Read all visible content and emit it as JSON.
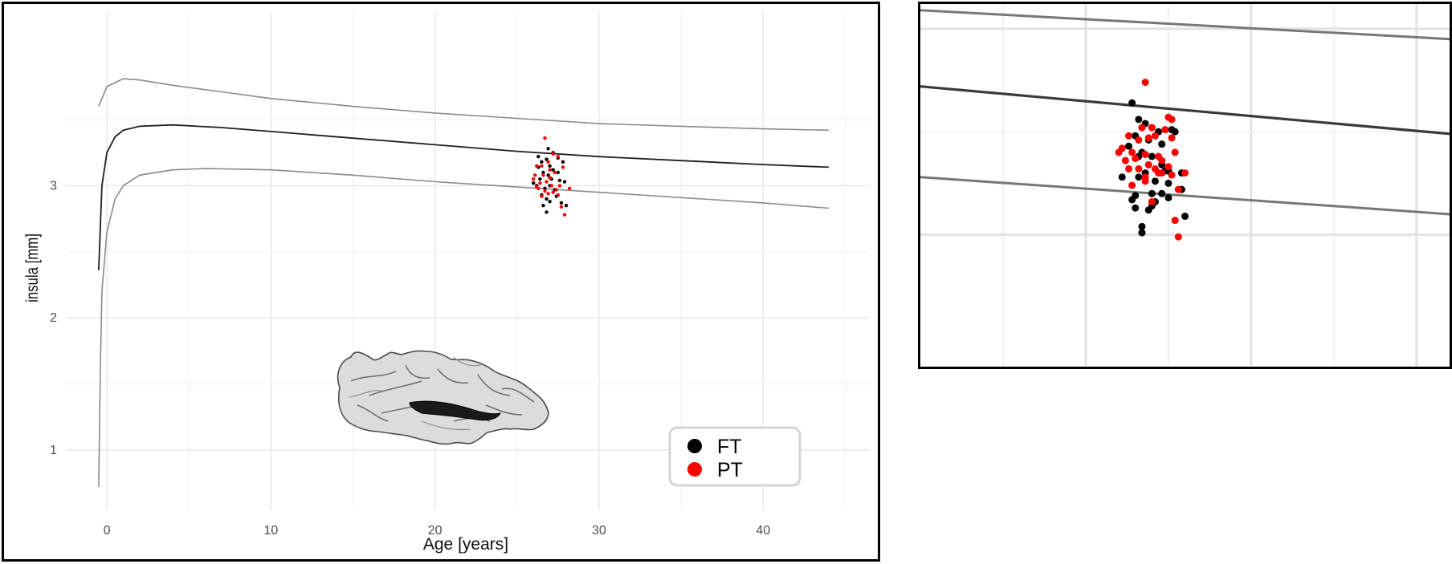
{
  "chart_data": [
    {
      "type": "scatter",
      "xlabel": "Age [years]",
      "ylabel": "insula [mm]",
      "xlim": [
        -2.5,
        46.5
      ],
      "ylim": [
        0.55,
        3.95
      ],
      "x_ticks": [
        "0",
        "10",
        "20",
        "30",
        "40"
      ],
      "x_tick_values": [
        0,
        10,
        20,
        30,
        40
      ],
      "y_ticks": [
        "1",
        "2",
        "3"
      ],
      "y_tick_values": [
        1,
        2,
        3
      ],
      "grid": true,
      "legend_position": "bottom-right",
      "legend": [
        {
          "label": "FT",
          "color": "#000000"
        },
        {
          "label": "PT",
          "color": "#ff0000"
        }
      ],
      "curves": [
        {
          "role": "upper",
          "color": "#8a8a8a",
          "points": [
            [
              -0.5,
              3.6
            ],
            [
              0,
              3.75
            ],
            [
              1,
              3.81
            ],
            [
              2,
              3.8
            ],
            [
              4,
              3.76
            ],
            [
              7,
              3.71
            ],
            [
              10,
              3.66
            ],
            [
              15,
              3.6
            ],
            [
              20,
              3.55
            ],
            [
              25,
              3.51
            ],
            [
              30,
              3.47
            ],
            [
              35,
              3.45
            ],
            [
              40,
              3.43
            ],
            [
              44,
              3.42
            ]
          ]
        },
        {
          "role": "median",
          "color": "#1e1e1e",
          "points": [
            [
              -0.5,
              2.36
            ],
            [
              -0.3,
              3.0
            ],
            [
              0,
              3.25
            ],
            [
              0.5,
              3.37
            ],
            [
              1,
              3.42
            ],
            [
              2,
              3.45
            ],
            [
              4,
              3.46
            ],
            [
              7,
              3.44
            ],
            [
              10,
              3.41
            ],
            [
              15,
              3.36
            ],
            [
              20,
              3.31
            ],
            [
              25,
              3.26
            ],
            [
              30,
              3.22
            ],
            [
              35,
              3.19
            ],
            [
              40,
              3.16
            ],
            [
              44,
              3.14
            ]
          ]
        },
        {
          "role": "lower",
          "color": "#8a8a8a",
          "points": [
            [
              -0.5,
              0.72
            ],
            [
              -0.4,
              1.6
            ],
            [
              -0.3,
              2.2
            ],
            [
              0,
              2.65
            ],
            [
              0.5,
              2.9
            ],
            [
              1,
              3.0
            ],
            [
              2,
              3.08
            ],
            [
              4,
              3.12
            ],
            [
              6,
              3.13
            ],
            [
              10,
              3.12
            ],
            [
              15,
              3.08
            ],
            [
              20,
              3.03
            ],
            [
              25,
              2.99
            ],
            [
              30,
              2.95
            ],
            [
              35,
              2.91
            ],
            [
              40,
              2.87
            ],
            [
              44,
              2.83
            ]
          ]
        }
      ],
      "series": [
        {
          "name": "FT",
          "color": "#000000",
          "points": [
            [
              26.3,
              3.22
            ],
            [
              26.5,
              3.18
            ],
            [
              26.8,
              3.2
            ],
            [
              27.0,
              3.15
            ],
            [
              27.2,
              3.12
            ],
            [
              26.9,
              3.08
            ],
            [
              26.6,
              3.1
            ],
            [
              27.5,
              3.21
            ],
            [
              27.8,
              3.18
            ],
            [
              26.4,
              3.05
            ],
            [
              26.2,
              3.0
            ],
            [
              26.7,
              2.98
            ],
            [
              27.1,
              3.05
            ],
            [
              27.3,
              2.97
            ],
            [
              27.6,
              3.04
            ],
            [
              27.9,
              3.03
            ],
            [
              26.5,
              2.93
            ],
            [
              26.8,
              2.9
            ],
            [
              27.0,
              2.88
            ],
            [
              27.4,
              2.92
            ],
            [
              27.7,
              2.87
            ],
            [
              26.6,
              2.85
            ],
            [
              26.8,
              2.8
            ],
            [
              28.0,
              2.85
            ],
            [
              26.0,
              3.02
            ],
            [
              27.2,
              3.25
            ],
            [
              26.9,
              3.28
            ],
            [
              27.5,
              3.1
            ],
            [
              26.3,
              3.14
            ],
            [
              27.0,
              3.0
            ]
          ]
        },
        {
          "name": "PT",
          "color": "#ff0000",
          "points": [
            [
              26.7,
              3.36
            ],
            [
              27.2,
              3.24
            ],
            [
              27.5,
              3.22
            ],
            [
              26.2,
              3.15
            ],
            [
              26.5,
              3.15
            ],
            [
              27.0,
              3.12
            ],
            [
              27.8,
              3.14
            ],
            [
              26.1,
              3.08
            ],
            [
              26.6,
              3.08
            ],
            [
              27.3,
              3.1
            ],
            [
              26.0,
              3.05
            ],
            [
              26.4,
              3.02
            ],
            [
              26.8,
              3.03
            ],
            [
              27.1,
              3.0
            ],
            [
              27.6,
              3.0
            ],
            [
              26.3,
              2.98
            ],
            [
              26.7,
              2.96
            ],
            [
              27.2,
              2.95
            ],
            [
              27.5,
              2.93
            ],
            [
              26.5,
              2.92
            ],
            [
              26.9,
              2.94
            ],
            [
              27.4,
              2.97
            ],
            [
              28.2,
              2.98
            ],
            [
              27.7,
              2.84
            ],
            [
              27.9,
              2.78
            ],
            [
              26.9,
              3.18
            ],
            [
              27.0,
              3.06
            ],
            [
              26.2,
              2.99
            ]
          ]
        }
      ]
    },
    {
      "type": "scatter",
      "xlim": [
        20,
        36
      ],
      "ylim": [
        2.68,
        3.56
      ],
      "grid": true,
      "curves": [
        {
          "role": "upper",
          "color": "#777777",
          "points": [
            [
              20,
              3.545
            ],
            [
              36,
              3.475
            ]
          ]
        },
        {
          "role": "median",
          "color": "#3a3a3a",
          "points": [
            [
              20,
              3.36
            ],
            [
              36,
              3.245
            ]
          ]
        },
        {
          "role": "lower",
          "color": "#777777",
          "points": [
            [
              20,
              3.14
            ],
            [
              36,
              3.05
            ]
          ]
        }
      ],
      "series": [
        {
          "name": "FT",
          "color": "#000000",
          "points": [
            [
              26.4,
              3.32
            ],
            [
              26.6,
              3.28
            ],
            [
              26.8,
              3.27
            ],
            [
              27.0,
              3.26
            ],
            [
              27.2,
              3.25
            ],
            [
              26.5,
              3.24
            ],
            [
              26.9,
              3.23
            ],
            [
              27.3,
              3.22
            ],
            [
              27.6,
              3.255
            ],
            [
              27.7,
              3.25
            ],
            [
              26.3,
              3.215
            ],
            [
              26.7,
              3.2
            ],
            [
              27.0,
              3.19
            ],
            [
              26.6,
              3.19
            ],
            [
              27.3,
              3.17
            ],
            [
              27.5,
              3.155
            ],
            [
              27.9,
              3.15
            ],
            [
              27.4,
              3.155
            ],
            [
              26.8,
              3.15
            ],
            [
              26.1,
              3.14
            ],
            [
              26.6,
              3.14
            ],
            [
              27.1,
              3.13
            ],
            [
              27.5,
              3.125
            ],
            [
              26.5,
              3.095
            ],
            [
              27.0,
              3.1
            ],
            [
              27.3,
              3.1
            ],
            [
              27.9,
              3.11
            ],
            [
              26.4,
              3.085
            ],
            [
              26.5,
              3.065
            ],
            [
              26.9,
              3.06
            ],
            [
              27.5,
              3.09
            ],
            [
              28.0,
              3.045
            ],
            [
              26.7,
              3.02
            ],
            [
              26.7,
              3.005
            ],
            [
              27.1,
              3.08
            ],
            [
              27.0,
              3.07
            ]
          ]
        },
        {
          "name": "PT",
          "color": "#ff0000",
          "points": [
            [
              26.8,
              3.37
            ],
            [
              27.5,
              3.285
            ],
            [
              27.6,
              3.28
            ],
            [
              26.7,
              3.26
            ],
            [
              27.0,
              3.26
            ],
            [
              27.4,
              3.255
            ],
            [
              26.3,
              3.24
            ],
            [
              26.6,
              3.23
            ],
            [
              26.9,
              3.235
            ],
            [
              27.1,
              3.24
            ],
            [
              27.6,
              3.235
            ],
            [
              26.1,
              3.21
            ],
            [
              26.4,
              3.2
            ],
            [
              26.8,
              3.195
            ],
            [
              27.2,
              3.19
            ],
            [
              27.3,
              3.18
            ],
            [
              27.7,
              3.2
            ],
            [
              26.0,
              3.2
            ],
            [
              26.2,
              3.18
            ],
            [
              26.5,
              3.185
            ],
            [
              26.9,
              3.17
            ],
            [
              27.1,
              3.16
            ],
            [
              27.5,
              3.165
            ],
            [
              27.6,
              3.145
            ],
            [
              26.3,
              3.16
            ],
            [
              26.6,
              3.16
            ],
            [
              27.3,
              3.15
            ],
            [
              26.8,
              3.14
            ],
            [
              27.2,
              3.15
            ],
            [
              28.0,
              3.15
            ],
            [
              26.4,
              3.12
            ],
            [
              27.8,
              3.11
            ],
            [
              26.8,
              3.13
            ],
            [
              27.7,
              3.035
            ],
            [
              27.8,
              2.995
            ],
            [
              27.0,
              3.08
            ]
          ]
        }
      ]
    }
  ]
}
